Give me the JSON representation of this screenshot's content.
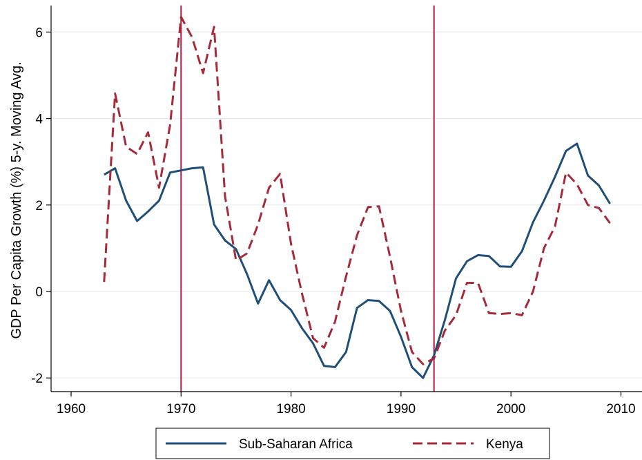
{
  "chart_data": {
    "type": "line",
    "title": "",
    "xlabel": "",
    "ylabel": "GDP Per Capita Growth (%) 5-y. Moving Avg.",
    "xlim": [
      1963,
      2009
    ],
    "ylim": [
      -2,
      6
    ],
    "x_ticks": [
      1960,
      1970,
      1980,
      1990,
      2000,
      2010
    ],
    "y_ticks": [
      -2,
      0,
      2,
      4,
      6
    ],
    "grid": true,
    "legend_position": "bottom",
    "vertical_lines": [
      1970,
      1993
    ],
    "colors": {
      "ssa": "#1f4e79",
      "kenya": "#a52a3a",
      "vline": "#b5173f",
      "grid": "#e6ecf0"
    },
    "series": [
      {
        "name": "Sub-Saharan Africa",
        "style": "solid",
        "x": [
          1963,
          1964,
          1965,
          1966,
          1967,
          1968,
          1969,
          1970,
          1971,
          1972,
          1973,
          1974,
          1975,
          1976,
          1977,
          1978,
          1979,
          1980,
          1981,
          1982,
          1983,
          1984,
          1985,
          1986,
          1987,
          1988,
          1989,
          1990,
          1991,
          1992,
          1993,
          1994,
          1995,
          1996,
          1997,
          1998,
          1999,
          2000,
          2001,
          2002,
          2003,
          2004,
          2005,
          2006,
          2007,
          2008,
          2009
        ],
        "values": [
          2.7,
          2.85,
          2.1,
          1.63,
          1.85,
          2.1,
          2.75,
          2.8,
          2.85,
          2.87,
          1.55,
          1.18,
          0.98,
          0.4,
          -0.28,
          0.26,
          -0.2,
          -0.43,
          -0.85,
          -1.2,
          -1.72,
          -1.75,
          -1.4,
          -0.38,
          -0.2,
          -0.22,
          -0.45,
          -1.05,
          -1.75,
          -2.0,
          -1.48,
          -0.65,
          0.3,
          0.7,
          0.84,
          0.82,
          0.58,
          0.57,
          0.93,
          1.6,
          2.1,
          2.65,
          3.25,
          3.42,
          2.68,
          2.45,
          2.03
        ]
      },
      {
        "name": "Kenya",
        "style": "dashed",
        "x": [
          1963,
          1964,
          1965,
          1966,
          1967,
          1968,
          1969,
          1970,
          1971,
          1972,
          1973,
          1974,
          1975,
          1976,
          1977,
          1978,
          1979,
          1980,
          1981,
          1982,
          1983,
          1984,
          1985,
          1986,
          1987,
          1988,
          1989,
          1990,
          1991,
          1992,
          1993,
          1994,
          1995,
          1996,
          1997,
          1998,
          1999,
          2000,
          2001,
          2002,
          2003,
          2004,
          2005,
          2006,
          2007,
          2008,
          2009
        ],
        "values": [
          0.22,
          4.58,
          3.35,
          3.18,
          3.68,
          2.4,
          3.85,
          6.35,
          5.88,
          5.05,
          6.12,
          2.2,
          0.72,
          0.88,
          1.55,
          2.4,
          2.72,
          1.1,
          -0.05,
          -1.08,
          -1.3,
          -0.7,
          0.35,
          1.3,
          1.95,
          1.97,
          0.8,
          -0.45,
          -1.4,
          -1.68,
          -1.55,
          -0.9,
          -0.55,
          0.2,
          0.2,
          -0.5,
          -0.52,
          -0.5,
          -0.55,
          0.0,
          1.0,
          1.5,
          2.75,
          2.48,
          2.0,
          1.93,
          1.58
        ]
      }
    ]
  }
}
